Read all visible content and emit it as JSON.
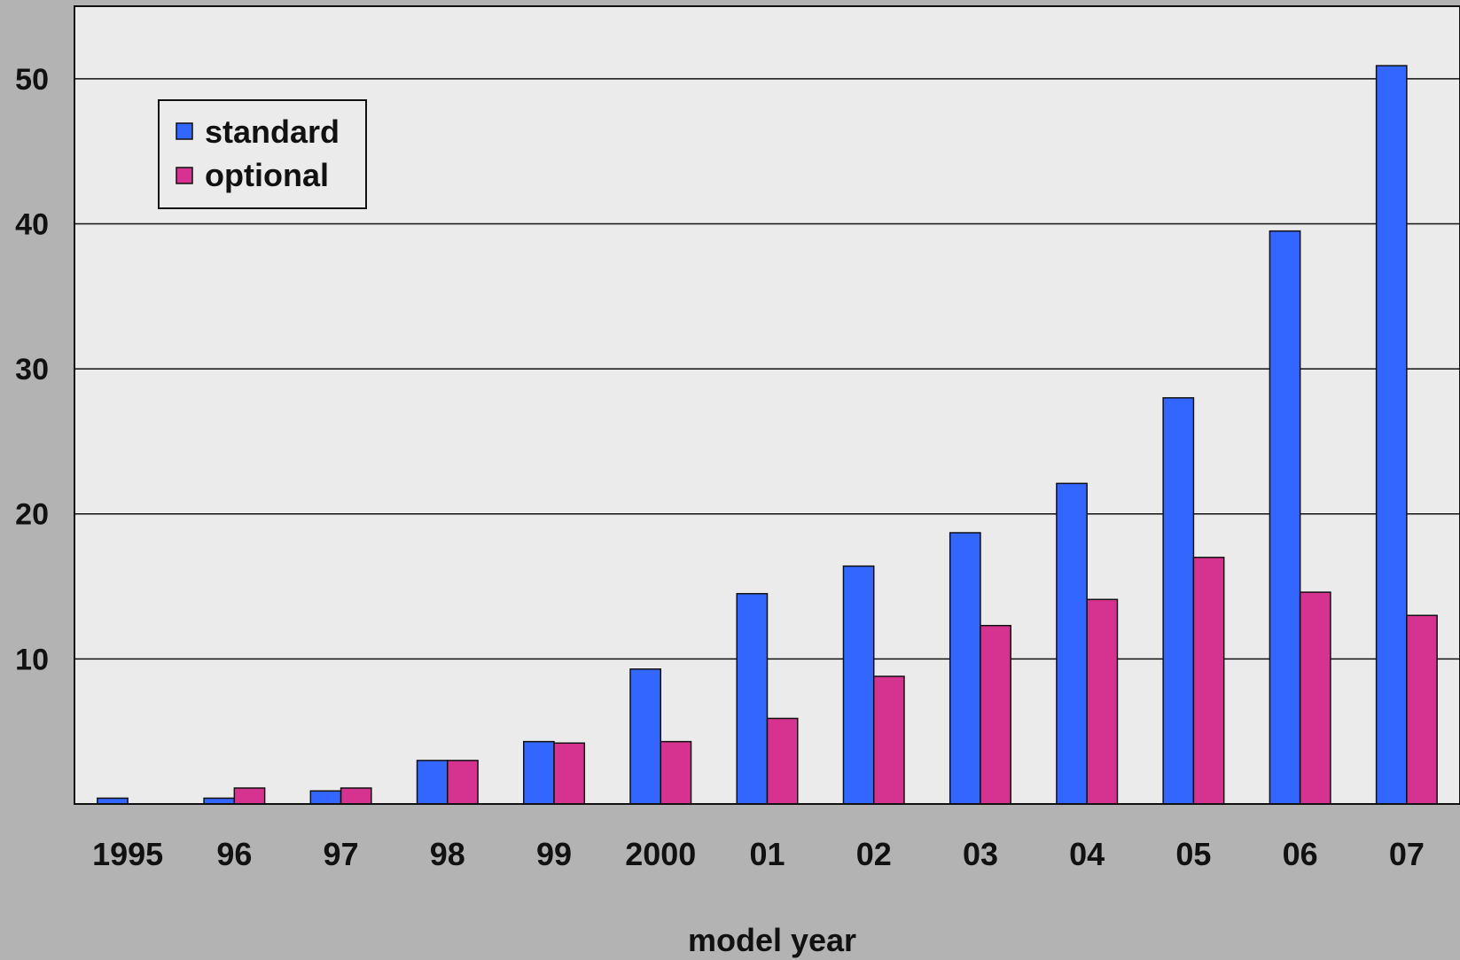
{
  "chart_data": {
    "type": "bar",
    "title": "",
    "xlabel": "model year",
    "ylabel": "",
    "categories": [
      "1995",
      "96",
      "97",
      "98",
      "99",
      "2000",
      "01",
      "02",
      "03",
      "04",
      "05",
      "06",
      "07"
    ],
    "series": [
      {
        "name": "standard",
        "color": "#3366ff",
        "values": [
          0.4,
          0.4,
          0.9,
          3.0,
          4.3,
          9.3,
          14.5,
          16.4,
          18.7,
          22.1,
          28.0,
          39.5,
          50.9
        ]
      },
      {
        "name": "optional",
        "color": "#d63390",
        "values": [
          0,
          1.1,
          1.1,
          3.0,
          4.2,
          4.3,
          5.9,
          8.8,
          12.3,
          14.1,
          17.0,
          14.6,
          13.0
        ]
      }
    ],
    "ylim": [
      0,
      55
    ],
    "yticks": [
      10,
      20,
      30,
      40,
      50
    ],
    "grid": true,
    "legend_position": "top-left",
    "plot_background": "#ebebeb",
    "page_background": "#b3b3b3"
  }
}
